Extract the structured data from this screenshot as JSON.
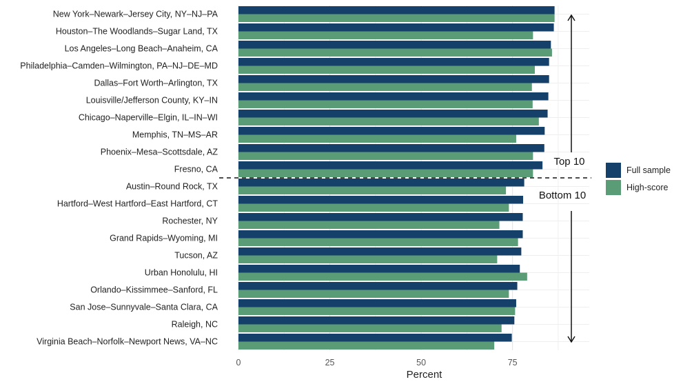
{
  "chart_data": {
    "type": "bar",
    "orientation": "horizontal",
    "categories": [
      "New York–Newark–Jersey City, NY–NJ–PA",
      "Houston–The Woodlands–Sugar Land, TX",
      "Los Angeles–Long Beach–Anaheim, CA",
      "Philadelphia–Camden–Wilmington, PA–NJ–DE–MD",
      "Dallas–Fort Worth–Arlington, TX",
      "Louisville/Jefferson County, KY–IN",
      "Chicago–Naperville–Elgin, IL–IN–WI",
      "Memphis, TN–MS–AR",
      "Phoenix–Mesa–Scottsdale, AZ",
      "Fresno, CA",
      "Austin–Round Rock, TX",
      "Hartford–West Hartford–East Hartford, CT",
      "Rochester, NY",
      "Grand Rapids–Wyoming, MI",
      "Tucson, AZ",
      "Urban Honolulu, HI",
      "Orlando–Kissimmee–Sanford, FL",
      "San Jose–Sunnyvale–Santa Clara, CA",
      "Raleigh, NC",
      "Virginia Beach–Norfolk–Newport News, VA–NC"
    ],
    "series": [
      {
        "name": "Full sample",
        "color": "#15406a",
        "values": [
          86.5,
          86.3,
          85.5,
          85.0,
          85.0,
          84.8,
          84.6,
          83.8,
          83.7,
          83.2,
          78.2,
          77.9,
          77.8,
          77.8,
          77.4,
          77.0,
          76.3,
          76.0,
          75.5,
          74.8
        ]
      },
      {
        "name": "High-score",
        "color": "#5a9c76",
        "values": [
          86.5,
          80.6,
          85.8,
          81.1,
          80.3,
          80.5,
          82.2,
          76.0,
          80.6,
          80.6,
          73.2,
          74.0,
          71.4,
          76.5,
          70.8,
          79.0,
          74.0,
          75.7,
          72.0,
          70.0
        ]
      }
    ],
    "x_ticks": [
      0,
      25,
      50,
      75
    ],
    "xlim": [
      0,
      96
    ],
    "xlabel": "Percent",
    "ylabel": "",
    "grid": true,
    "legend_position": "right",
    "annotations": {
      "top_label": "Top 10",
      "bottom_label": "Bottom 10",
      "divider_after_index": 9
    }
  }
}
